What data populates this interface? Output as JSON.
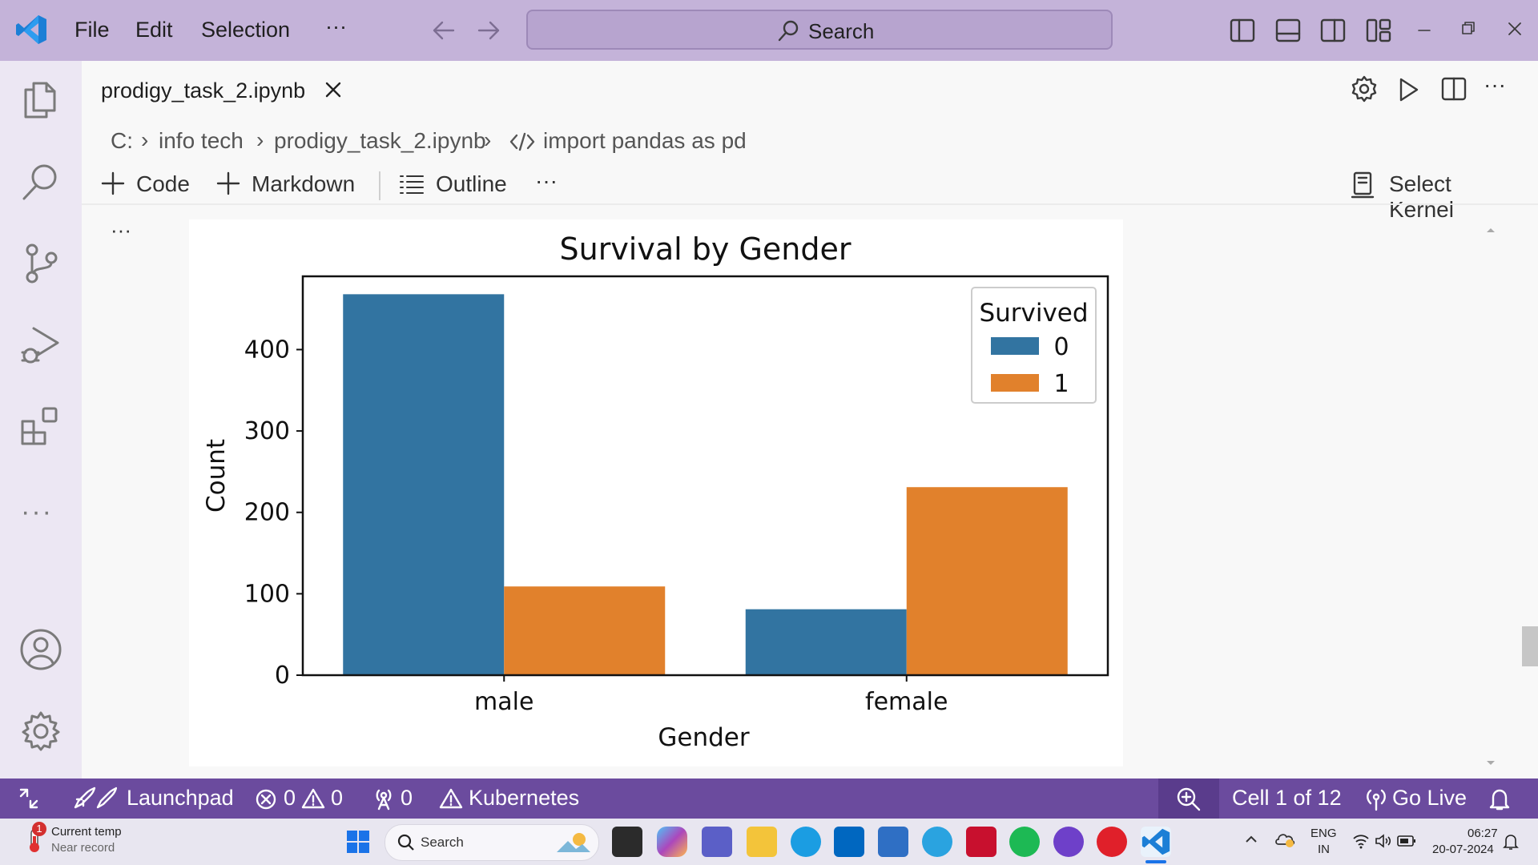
{
  "menu": {
    "file": "File",
    "edit": "Edit",
    "selection": "Selection",
    "more": "···"
  },
  "search": {
    "label": "Search"
  },
  "tab": {
    "title": "prodigy_task_2.ipynb"
  },
  "breadcrumb": {
    "drive": "C:",
    "folder": "info tech",
    "file": "prodigy_task_2.ipynb",
    "symbol": "import pandas as pd"
  },
  "toolbar": {
    "code": "Code",
    "markdown": "Markdown",
    "outline": "Outline",
    "more": "···",
    "kernel": "Select Kernel"
  },
  "cell": {
    "more": "···"
  },
  "chart_data": {
    "type": "bar",
    "title": "Survival by Gender",
    "xlabel": "Gender",
    "ylabel": "Count",
    "categories": [
      "male",
      "female"
    ],
    "series": [
      {
        "name": "0",
        "values": [
          468,
          81
        ],
        "color": "#3274a1"
      },
      {
        "name": "1",
        "values": [
          109,
          231
        ],
        "color": "#e1812c"
      }
    ],
    "legend_title": "Survived",
    "legend_position": "top-right",
    "yticks": [
      0,
      100,
      200,
      300,
      400
    ],
    "ylim": [
      0,
      490
    ],
    "grid": false
  },
  "status": {
    "launchpad": "Launchpad",
    "errors": "0",
    "warnings": "0",
    "ports": "0",
    "kubernetes": "Kubernetes",
    "cell": "Cell 1 of 12",
    "golive": "Go Live"
  },
  "taskbar": {
    "weather_badge": "1",
    "weather_title": "Current temp",
    "weather_sub": "Near record",
    "search": "Search",
    "lang1": "ENG",
    "lang2": "IN",
    "time": "06:27",
    "date": "20-07-2024"
  }
}
